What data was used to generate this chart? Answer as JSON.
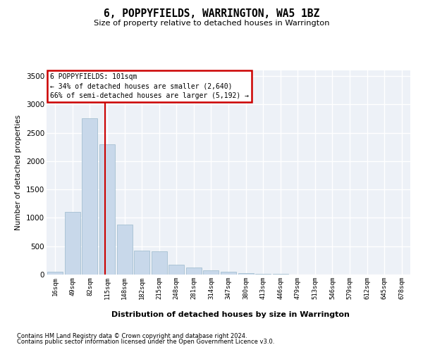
{
  "title": "6, POPPYFIELDS, WARRINGTON, WA5 1BZ",
  "subtitle": "Size of property relative to detached houses in Warrington",
  "xlabel": "Distribution of detached houses by size in Warrington",
  "ylabel": "Number of detached properties",
  "bar_color": "#c8d8ea",
  "bar_edge_color": "#9ab8cc",
  "background_color": "#edf1f7",
  "grid_color": "#ffffff",
  "annotation_border_color": "#cc0000",
  "annotation_line1": "6 POPPYFIELDS: 101sqm",
  "annotation_line2": "← 34% of detached houses are smaller (2,640)",
  "annotation_line3": "66% of semi-detached houses are larger (5,192) →",
  "redline_bin_index": 2.87,
  "categories": [
    "16sqm",
    "49sqm",
    "82sqm",
    "115sqm",
    "148sqm",
    "182sqm",
    "215sqm",
    "248sqm",
    "281sqm",
    "314sqm",
    "347sqm",
    "380sqm",
    "413sqm",
    "446sqm",
    "479sqm",
    "513sqm",
    "546sqm",
    "579sqm",
    "612sqm",
    "645sqm",
    "678sqm"
  ],
  "values": [
    50,
    1100,
    2750,
    2300,
    880,
    420,
    415,
    175,
    120,
    75,
    48,
    28,
    16,
    8,
    4,
    2,
    1,
    0,
    0,
    0,
    0
  ],
  "ylim": [
    0,
    3600
  ],
  "yticks": [
    0,
    500,
    1000,
    1500,
    2000,
    2500,
    3000,
    3500
  ],
  "footnote1": "Contains HM Land Registry data © Crown copyright and database right 2024.",
  "footnote2": "Contains public sector information licensed under the Open Government Licence v3.0."
}
